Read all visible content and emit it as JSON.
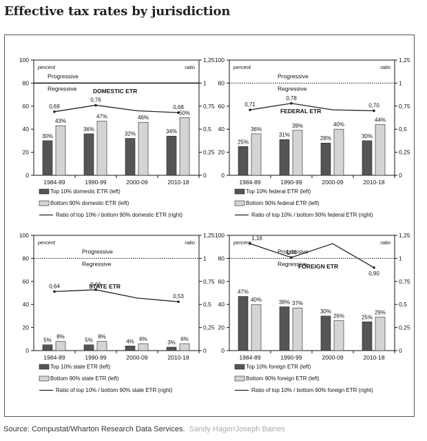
{
  "page_title": "Effective tax rates by jurisdiction",
  "source": {
    "text": "Source: Compustat/Wharton Research Data Services.",
    "credit": "Sandy Hager/Joseph Baines"
  },
  "colors": {
    "top10": "#555555",
    "bottom90": "#d4d4d4",
    "ratio_line": "#222222"
  },
  "chart_data": [
    {
      "type": "bar",
      "title": "DOMESTIC ETR",
      "ylabel": "percent",
      "y2label": "ratio",
      "ylim": [
        0,
        100
      ],
      "y2lim": [
        0,
        1.25
      ],
      "yticks": [
        "0",
        "20",
        "40",
        "60",
        "80",
        "100"
      ],
      "y2ticks": [
        "0",
        "0,25",
        "0,5",
        "0,75",
        "1",
        "1,25"
      ],
      "reference_line": {
        "y2": 1,
        "style": "solid",
        "above_label": "Progressive",
        "below_label": "Regressive"
      },
      "categories": [
        "1984-89",
        "1990-99",
        "2000-09",
        "2010-18"
      ],
      "series": [
        {
          "name": "Top 10% domestic ETR (left)",
          "kind": "bar",
          "values": [
            30,
            36,
            32,
            34
          ],
          "labels": [
            "30%",
            "36%",
            "32%",
            "34%"
          ]
        },
        {
          "name": "Bottom 90% domestic ETR (left)",
          "kind": "bar",
          "values": [
            43,
            47,
            46,
            50
          ],
          "labels": [
            "43%",
            "47%",
            "46%",
            "50%"
          ]
        },
        {
          "name": "Ratio of top 10% / bottom 90% domestic ETR (right)",
          "kind": "line",
          "axis": "right",
          "values": [
            0.69,
            0.76,
            0.7,
            0.68
          ],
          "labels": [
            "0,69",
            "0,76",
            "",
            "0,68"
          ]
        }
      ]
    },
    {
      "type": "bar",
      "title": "FEDERAL ETR",
      "ylabel": "percent",
      "y2label": "ratio",
      "ylim": [
        0,
        100
      ],
      "y2lim": [
        0,
        1.25
      ],
      "yticks": [
        "0",
        "20",
        "40",
        "60",
        "80",
        "100"
      ],
      "y2ticks": [
        "0",
        "0,25",
        "0,5",
        "0,75",
        "1",
        "1,25"
      ],
      "reference_line": {
        "y2": 1,
        "style": "dotted",
        "above_label": "Progressive",
        "below_label": "Regressive"
      },
      "categories": [
        "1984-89",
        "1990-99",
        "2000-09",
        "2010-18"
      ],
      "series": [
        {
          "name": "Top 10% federal ETR (left)",
          "kind": "bar",
          "values": [
            25,
            31,
            28,
            30
          ],
          "labels": [
            "25%",
            "31%",
            "28%",
            "30%"
          ]
        },
        {
          "name": "Bottom 90% federal ETR (left)",
          "kind": "bar",
          "values": [
            36,
            39,
            40,
            44
          ],
          "labels": [
            "36%",
            "39%",
            "40%",
            "44%"
          ]
        },
        {
          "name": "Ratio of top 10% / bottom 90% federal ETR (right)",
          "kind": "line",
          "axis": "right",
          "values": [
            0.71,
            0.78,
            0.71,
            0.7
          ],
          "labels": [
            "0,71",
            "0,78",
            "",
            "0,70"
          ]
        }
      ]
    },
    {
      "type": "bar",
      "title": "STATE ETR",
      "ylabel": "percent",
      "y2label": "ratio",
      "ylim": [
        0,
        100
      ],
      "y2lim": [
        0,
        1.25
      ],
      "yticks": [
        "0",
        "20",
        "40",
        "60",
        "80",
        "100"
      ],
      "y2ticks": [
        "0",
        "0,25",
        "0,5",
        "0,75",
        "1",
        "1,25"
      ],
      "reference_line": {
        "y2": 1,
        "style": "dotted",
        "above_label": "Progressive",
        "below_label": "Regressive"
      },
      "categories": [
        "1984-89",
        "1990-99",
        "2000-09",
        "2010-18"
      ],
      "series": [
        {
          "name": "Top 10% state ETR (left)",
          "kind": "bar",
          "values": [
            5,
            5,
            4,
            3
          ],
          "labels": [
            "5%",
            "5%",
            "4%",
            "3%"
          ]
        },
        {
          "name": "Bottom 90% state ETR (left)",
          "kind": "bar",
          "values": [
            8,
            8,
            6,
            6
          ],
          "labels": [
            "8%",
            "8%",
            "6%",
            "6%"
          ]
        },
        {
          "name": "Ratio of top 10% / bottom 90% state ETR (right)",
          "kind": "line",
          "axis": "right",
          "values": [
            0.64,
            0.66,
            0.57,
            0.53
          ],
          "labels": [
            "0,64",
            "0,66",
            "",
            "0,53"
          ]
        }
      ]
    },
    {
      "type": "bar",
      "title": "FOREIGN ETR",
      "ylabel": "percent",
      "y2label": "ratio",
      "ylim": [
        0,
        100
      ],
      "y2lim": [
        0,
        1.25
      ],
      "yticks": [
        "0",
        "20",
        "40",
        "60",
        "80",
        "100"
      ],
      "y2ticks": [
        "0",
        "0,25",
        "0,5",
        "0,75",
        "1",
        "1,25"
      ],
      "reference_line": {
        "y2": 1,
        "style": "dotted",
        "above_label": "Progressive",
        "below_label": "Regressive"
      },
      "categories": [
        "1984-89",
        "1990-99",
        "2000-09",
        "2010-18"
      ],
      "series": [
        {
          "name": "Top 10% foreign ETR (left)",
          "kind": "bar",
          "values": [
            47,
            38,
            30,
            25
          ],
          "labels": [
            "47%",
            "38%",
            "30%",
            "25%"
          ]
        },
        {
          "name": "Bottom 90% foreign ETR (left)",
          "kind": "bar",
          "values": [
            40,
            37,
            26,
            29
          ],
          "labels": [
            "40%",
            "37%",
            "26%",
            "29%"
          ]
        },
        {
          "name": "Ratio of top 10% / bottom 90% foreign ETR (right)",
          "kind": "line",
          "axis": "right",
          "values": [
            1.16,
            1.01,
            1.16,
            0.9
          ],
          "labels": [
            "1,16",
            "1,01",
            "",
            "0,90"
          ]
        }
      ]
    }
  ]
}
